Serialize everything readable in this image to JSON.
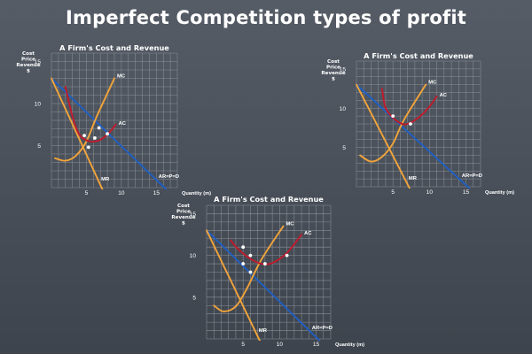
{
  "page": {
    "title": "Imperfect Competition types of profit"
  },
  "colors": {
    "grid": "#8a8f96",
    "mc": "#f2a43a",
    "mr": "#f2a43a",
    "ac": "#c01a2c",
    "ar": "#1f5fc4",
    "point": "#ffffff"
  },
  "chart_data": [
    {
      "type": "line",
      "title": "A Firm's Cost and Revenue",
      "ylabel": [
        "Cost",
        "Price",
        "Revenue",
        "$"
      ],
      "xlabel": "Quantity (m)",
      "xticks": [
        5,
        10,
        15
      ],
      "yticks": [
        5,
        10,
        15
      ],
      "xlim": [
        0,
        18
      ],
      "ylim": [
        0,
        16
      ],
      "grid": true,
      "series": [
        {
          "name": "AR=P=D",
          "points": [
            [
              0,
              13
            ],
            [
              18,
              -1.5
            ]
          ]
        },
        {
          "name": "MR",
          "points": [
            [
              0,
              13
            ],
            [
              8,
              -1.5
            ]
          ]
        },
        {
          "name": "MC",
          "points": [
            [
              0.5,
              3.5
            ],
            [
              2,
              3.2
            ],
            [
              3.5,
              3.8
            ],
            [
              5,
              5.5
            ],
            [
              6.5,
              8.5
            ],
            [
              9,
              13
            ]
          ]
        },
        {
          "name": "AC",
          "points": [
            [
              2,
              12
            ],
            [
              3,
              8.5
            ],
            [
              4,
              6.3
            ],
            [
              5.5,
              5.5
            ],
            [
              7,
              5.7
            ],
            [
              8.2,
              6.5
            ],
            [
              9.2,
              7.5
            ]
          ]
        }
      ],
      "markers": [
        [
          4.7,
          6.2
        ],
        [
          5.3,
          4.8
        ],
        [
          6.2,
          5.9
        ],
        [
          6.8,
          7.1
        ],
        [
          8,
          6.4
        ]
      ]
    },
    {
      "type": "line",
      "title": "A Firm's Cost and Revenue",
      "ylabel": [
        "Cost",
        "Price",
        "Revenue",
        "$"
      ],
      "xlabel": "Quantity (m)",
      "xticks": [
        5,
        10,
        15
      ],
      "yticks": [
        5,
        10,
        15
      ],
      "xlim": [
        0,
        17
      ],
      "ylim": [
        0,
        16
      ],
      "grid": true,
      "series": [
        {
          "name": "AR=P=D",
          "points": [
            [
              0,
              13
            ],
            [
              17,
              -1.5
            ]
          ]
        },
        {
          "name": "MR",
          "points": [
            [
              0,
              13
            ],
            [
              8,
              -1.5
            ]
          ]
        },
        {
          "name": "MC",
          "points": [
            [
              0.5,
              4
            ],
            [
              2,
              3.2
            ],
            [
              3.5,
              3.8
            ],
            [
              5,
              5.5
            ],
            [
              6.5,
              8.5
            ],
            [
              9.5,
              13
            ]
          ]
        },
        {
          "name": "AC",
          "points": [
            [
              3.5,
              12.5
            ],
            [
              4,
              10
            ],
            [
              5,
              8.8
            ],
            [
              6,
              8.1
            ],
            [
              7,
              8.0
            ],
            [
              8.5,
              8.8
            ],
            [
              10,
              10.2
            ],
            [
              11,
              11.5
            ]
          ]
        }
      ],
      "markers": [
        [
          5,
          9
        ],
        [
          7.4,
          8.0
        ]
      ]
    },
    {
      "type": "line",
      "title": "A Firm's Cost and Revenue",
      "ylabel": [
        "Cost",
        "Price",
        "Revenue",
        "$"
      ],
      "xlabel": "Quantity (m)",
      "xticks": [
        5,
        10,
        15
      ],
      "yticks": [
        5,
        10,
        15
      ],
      "xlim": [
        0,
        17
      ],
      "ylim": [
        0,
        16
      ],
      "grid": true,
      "series": [
        {
          "name": "AR=P=D",
          "points": [
            [
              0,
              13
            ],
            [
              17,
              -1.5
            ]
          ]
        },
        {
          "name": "MR",
          "points": [
            [
              0,
              13
            ],
            [
              8,
              -1.5
            ]
          ]
        },
        {
          "name": "MC",
          "points": [
            [
              1,
              4
            ],
            [
              2.3,
              3.3
            ],
            [
              4,
              3.9
            ],
            [
              5.5,
              6
            ],
            [
              7.5,
              9.5
            ],
            [
              10.5,
              13.5
            ]
          ]
        },
        {
          "name": "AC",
          "points": [
            [
              3.3,
              11.8
            ],
            [
              4.5,
              10.6
            ],
            [
              6,
              9.6
            ],
            [
              7.5,
              9.0
            ],
            [
              9,
              9.1
            ],
            [
              11,
              10.3
            ],
            [
              13,
              12.5
            ]
          ]
        }
      ],
      "markers": [
        [
          5,
          11
        ],
        [
          6,
          10
        ],
        [
          5,
          9
        ],
        [
          6,
          8
        ],
        [
          8,
          9
        ],
        [
          11,
          10
        ]
      ]
    }
  ]
}
